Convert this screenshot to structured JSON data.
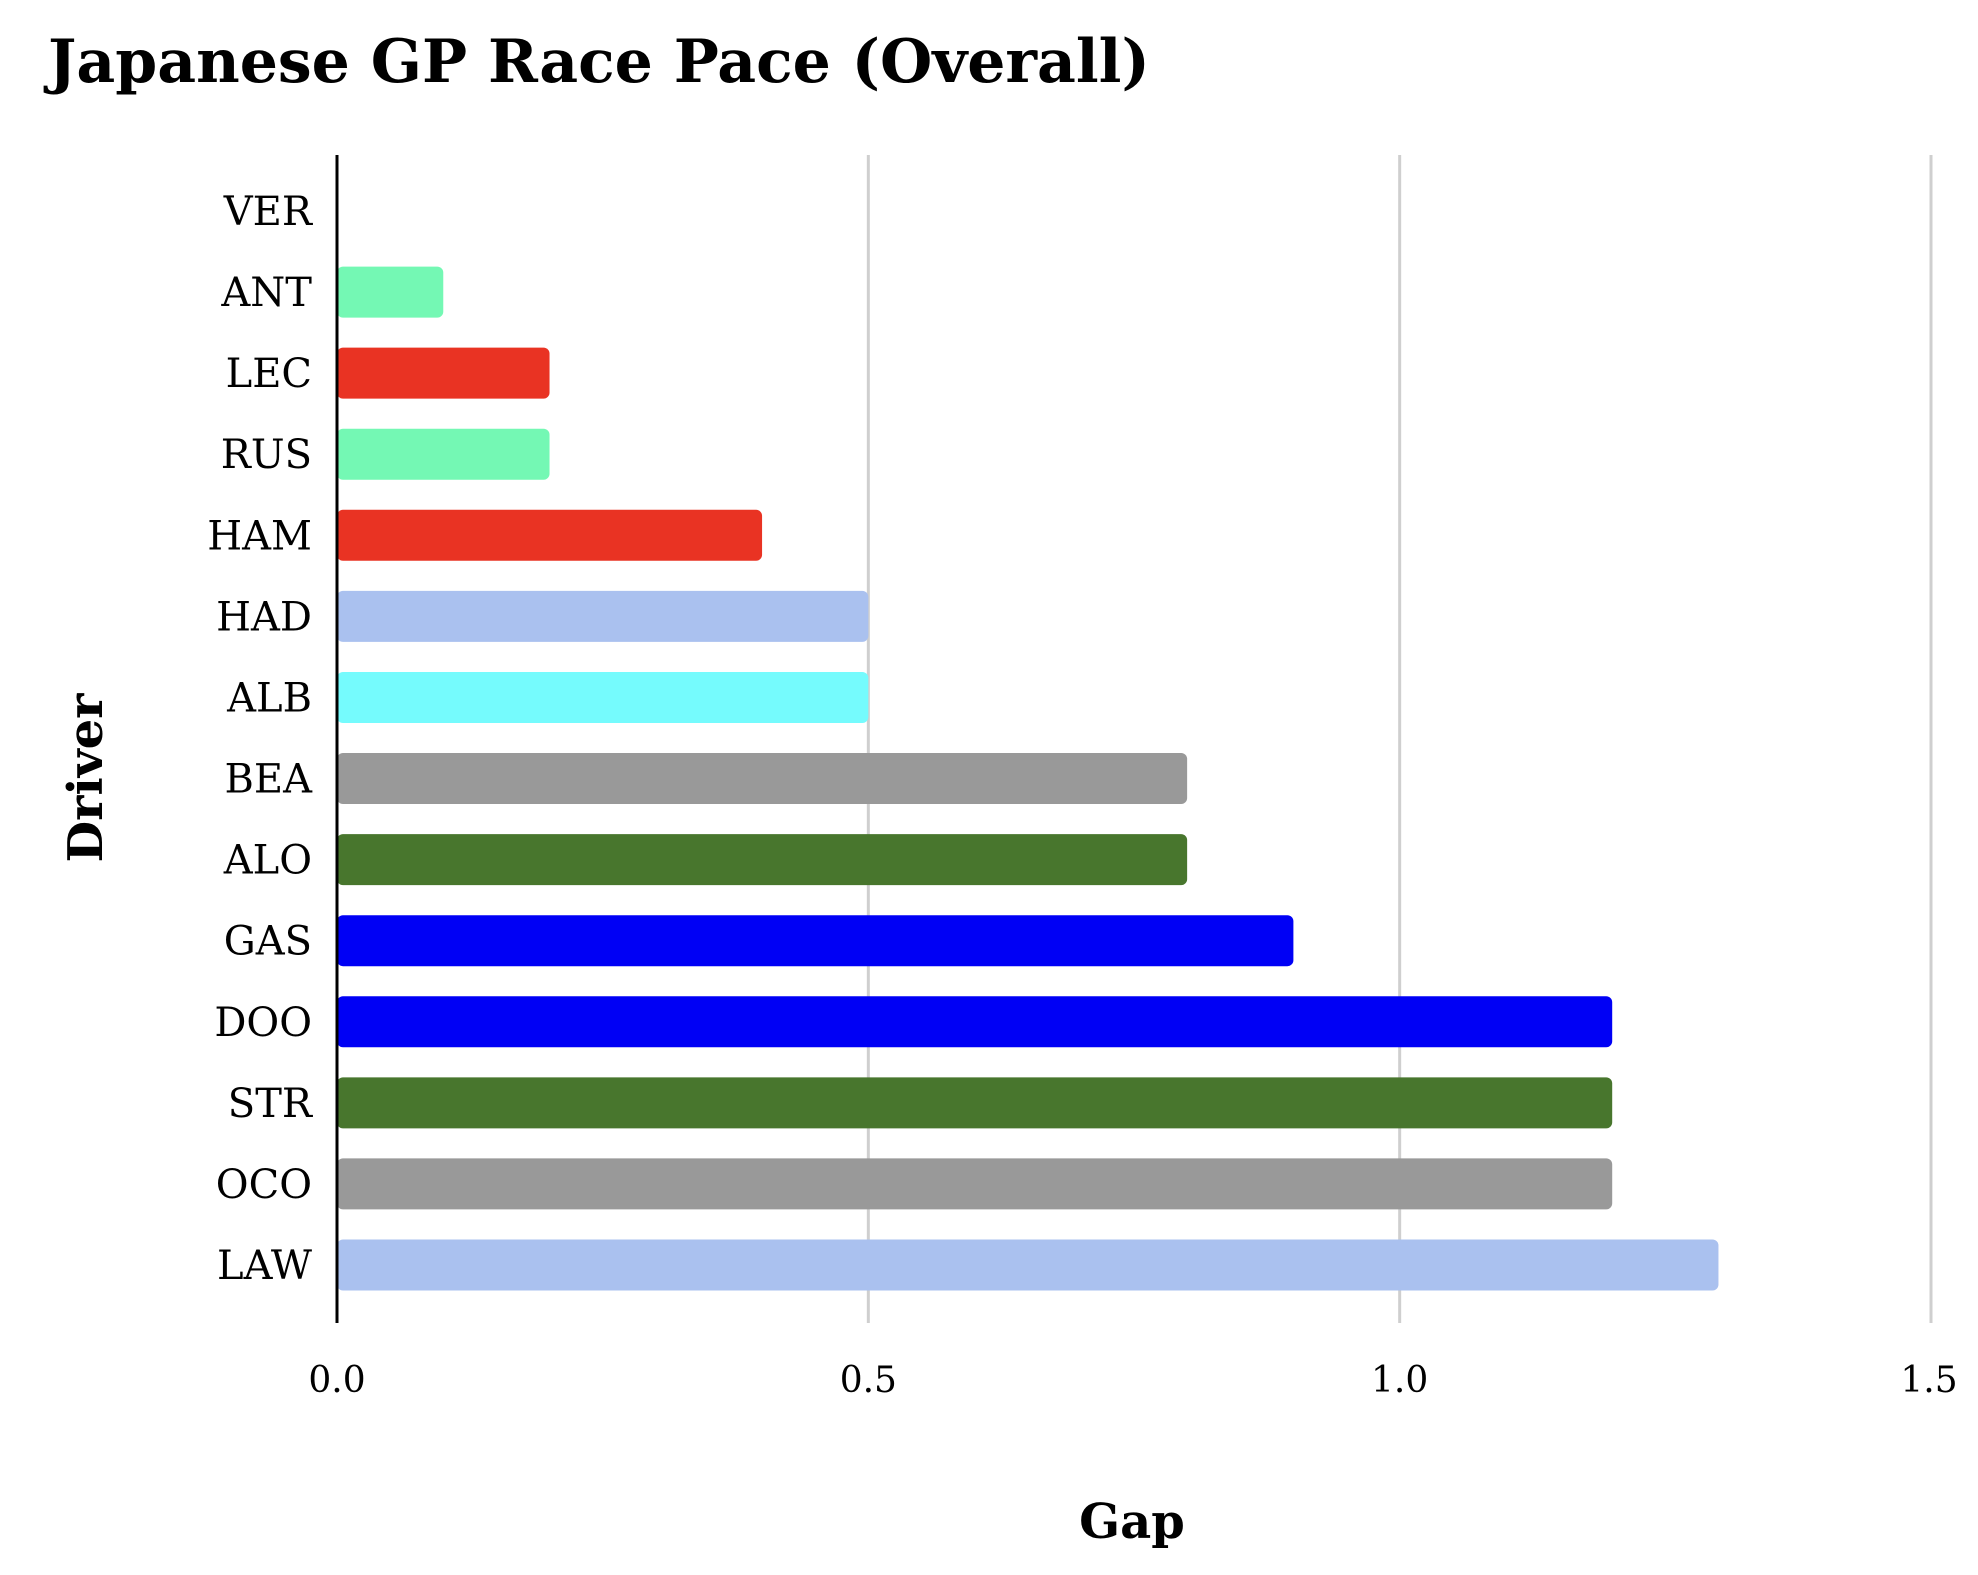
{
  "chart_data": {
    "type": "bar",
    "orientation": "horizontal",
    "title": "Japanese GP Race Pace (Overall)",
    "xlabel": "Gap",
    "ylabel": "Driver",
    "xlim": [
      0,
      1.5
    ],
    "xticks": [
      "0.0",
      "0.5",
      "1.0",
      "1.5"
    ],
    "grid": "vertical",
    "categories": [
      "VER",
      "ANT",
      "LEC",
      "RUS",
      "HAM",
      "HAD",
      "ALB",
      "BEA",
      "ALO",
      "GAS",
      "DOO",
      "STR",
      "OCO",
      "LAW"
    ],
    "values": [
      0.0,
      0.1,
      0.2,
      0.2,
      0.4,
      0.5,
      0.5,
      0.8,
      0.8,
      0.9,
      1.2,
      1.2,
      1.2,
      1.3
    ],
    "colors": [
      "#1e3cb4",
      "#74f8b4",
      "#e93323",
      "#74f8b4",
      "#e93323",
      "#aac1ef",
      "#75fbfd",
      "#999999",
      "#48762d",
      "#0000f5",
      "#0000f5",
      "#48762d",
      "#999999",
      "#aac1ef"
    ]
  }
}
